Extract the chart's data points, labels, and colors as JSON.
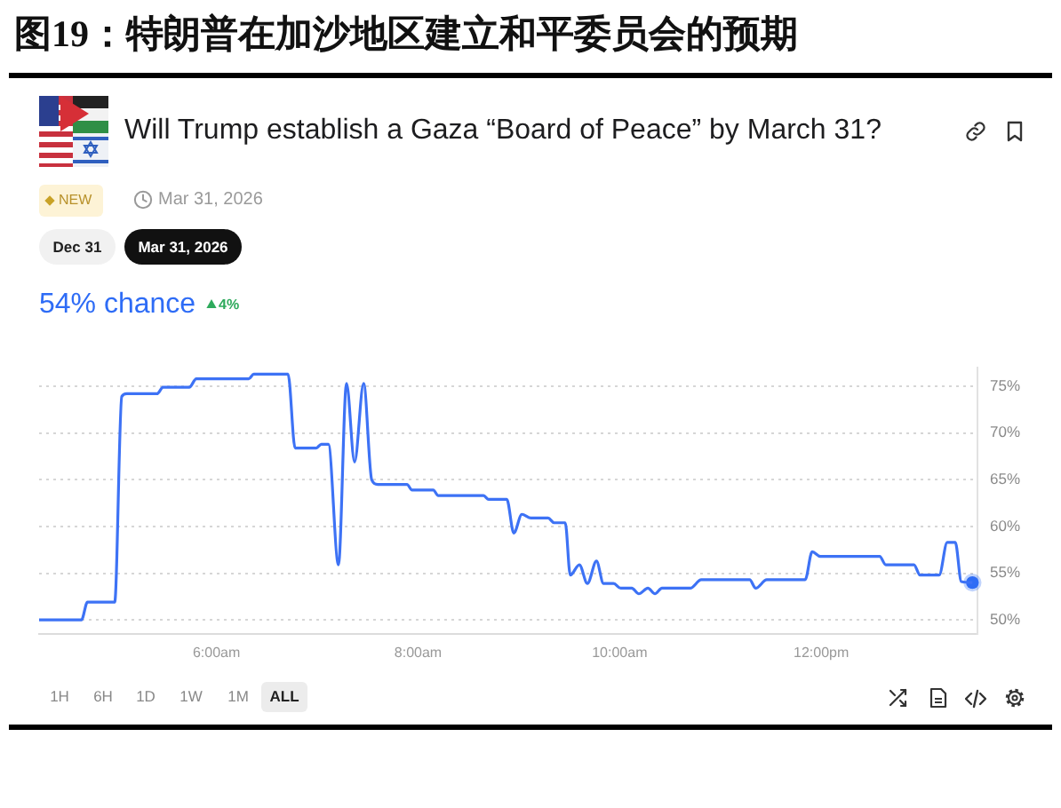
{
  "chart_data": {
    "type": "line",
    "title": "图19：特朗普在加沙地区建立和平委员会的预期",
    "subtitle": "Will Trump establish a Gaza “Board of Peace” by March 31?",
    "annotations": [
      "NEW",
      "Mar 31, 2026",
      "Dec 31",
      "Mar 31, 2026",
      "54% chance",
      "4%",
      "1H",
      "6H",
      "1D",
      "1W",
      "1M",
      "ALL"
    ],
    "x": [
      4.24,
      4.66,
      4.72,
      4.99,
      5.06,
      5.11,
      5.41,
      5.47,
      5.73,
      5.8,
      6.32,
      6.37,
      6.71,
      6.78,
      6.99,
      7.04,
      7.11,
      7.21,
      7.29,
      7.37,
      7.46,
      7.54,
      7.6,
      7.89,
      7.94,
      8.15,
      8.2,
      8.65,
      8.7,
      8.88,
      8.95,
      9.03,
      9.12,
      9.29,
      9.35,
      9.46,
      9.51,
      9.6,
      9.68,
      9.77,
      9.84,
      9.94,
      10.01,
      10.12,
      10.19,
      10.28,
      10.35,
      10.42,
      10.7,
      10.81,
      11.29,
      11.35,
      11.46,
      11.84,
      11.91,
      11.99,
      12.58,
      12.64,
      12.92,
      12.98,
      13.17,
      13.25,
      13.33,
      13.39,
      13.5
    ],
    "series": [
      {
        "color": "#3d72f5",
        "values": [
          50,
          50,
          51.9,
          51.9,
          73.9,
          74.2,
          74.2,
          74.9,
          74.9,
          75.8,
          75.8,
          76.3,
          76.3,
          68.4,
          68.4,
          68.8,
          68.8,
          55.9,
          75.3,
          66.9,
          75.3,
          65,
          64.5,
          64.5,
          63.9,
          63.9,
          63.3,
          63.3,
          62.9,
          62.9,
          59.3,
          61.3,
          60.9,
          60.9,
          60.4,
          60.4,
          54.8,
          55.9,
          53.9,
          56.3,
          53.9,
          53.9,
          53.4,
          53.4,
          52.8,
          53.4,
          52.8,
          53.4,
          53.4,
          54.3,
          54.3,
          53.4,
          54.3,
          54.3,
          57.3,
          56.8,
          56.8,
          55.9,
          55.9,
          54.8,
          54.8,
          58.3,
          58.3,
          54.1,
          54
        ]
      },
      {
        "type": "scatter",
        "marker": "circle",
        "color": "#2f6cf5",
        "x": [
          13.5
        ],
        "values": [
          54
        ]
      }
    ],
    "xlim": [
      4.24,
      13.55
    ],
    "xticks": [
      {
        "value": 6,
        "label": "6:00am"
      },
      {
        "value": 8,
        "label": "8:00am"
      },
      {
        "value": 10,
        "label": "10:00am"
      },
      {
        "value": 12,
        "label": "12:00pm"
      }
    ],
    "ylim": [
      48.5,
      77
    ],
    "yticks": [
      {
        "value": 50,
        "label": "50%"
      },
      {
        "value": 55,
        "label": "55%"
      },
      {
        "value": 60,
        "label": "60%"
      },
      {
        "value": 65,
        "label": "65%"
      },
      {
        "value": 70,
        "label": "70%"
      },
      {
        "value": 75,
        "label": "75%"
      }
    ],
    "grid": "y"
  }
}
